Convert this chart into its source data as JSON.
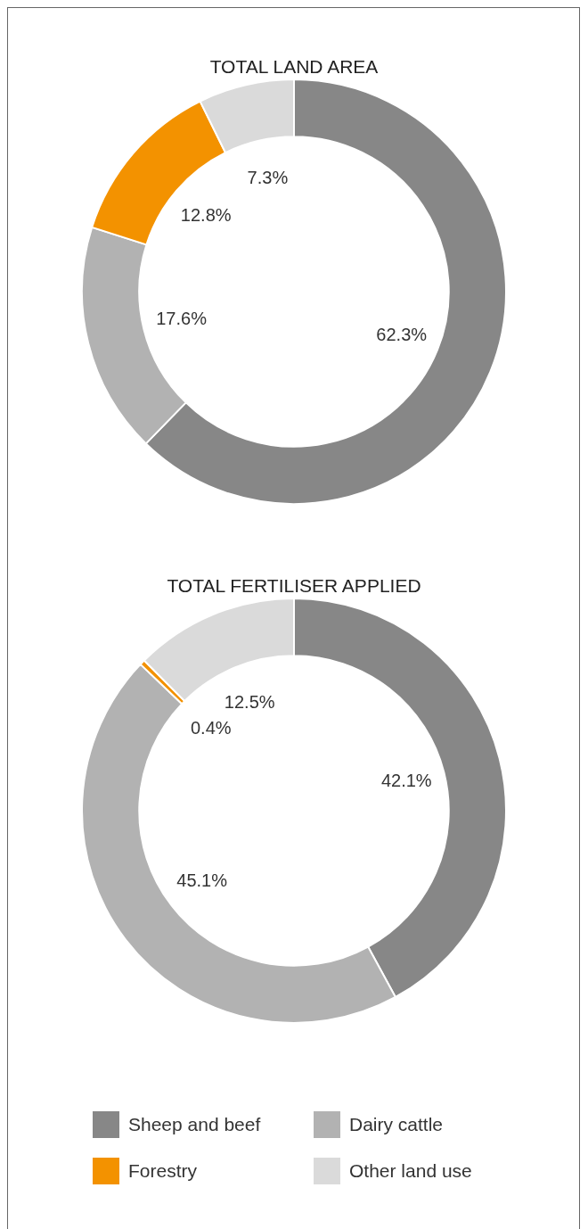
{
  "chart_data": [
    {
      "type": "donut",
      "title": "TOTAL LAND AREA",
      "categories": [
        null,
        null,
        null,
        null
      ],
      "values": [
        62.3,
        17.6,
        12.8,
        7.3
      ],
      "colors": [
        "#878787",
        "#b2b2b2",
        "#f39200",
        "#dadada"
      ],
      "value_labels": [
        "62.3%",
        "17.6%",
        "12.8%",
        "7.3%"
      ]
    },
    {
      "type": "donut",
      "title": "TOTAL FERTILISER APPLIED",
      "categories": [
        "Sheep and beef",
        "Dairy cattle",
        "Forestry",
        "Other land use"
      ],
      "values": [
        42.1,
        45.1,
        0.4,
        12.5
      ],
      "colors": [
        "#878787",
        "#b2b2b2",
        "#f39200",
        "#dadada"
      ],
      "value_labels": [
        "42.1%",
        "45.1%",
        "0.4%",
        "12.5%"
      ],
      "legend": "bottom"
    }
  ]
}
